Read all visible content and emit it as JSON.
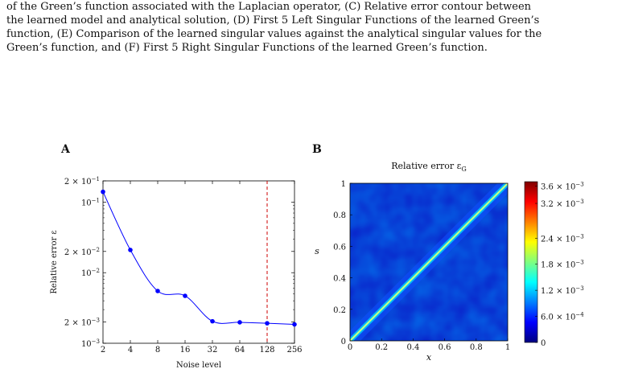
{
  "caption": {
    "lines": [
      "of the Green’s function associated with the Laplacian operator, (C) Relative error contour between",
      "the learned model and analytical solution, (D) First 5 Left Singular Functions of the learned Green’s",
      "function, (E) Comparison of the learned singular values against the analytical singular values for the",
      "Green’s function, and (F) First 5 Right Singular Functions of the learned Green’s function."
    ]
  },
  "panels": {
    "a_label": "A",
    "b_label": "B"
  },
  "chart_data": [
    {
      "type": "line",
      "panel": "A",
      "xlabel": "Noise level",
      "ylabel": "Relative error ε",
      "x_scale": "log2",
      "y_scale": "log10",
      "xlim": [
        2,
        256
      ],
      "ylim": [
        0.001,
        0.2
      ],
      "x_ticks": [
        2,
        4,
        8,
        16,
        32,
        64,
        128,
        256
      ],
      "x_tick_labels": [
        "2",
        "4",
        "8",
        "16",
        "32",
        "64",
        "128",
        "256"
      ],
      "y_ticks": [
        {
          "value": 0.2,
          "base": "2 × 10",
          "exp": "−1"
        },
        {
          "value": 0.1,
          "base": "10",
          "exp": "−1"
        },
        {
          "value": 0.02,
          "base": "2 × 10",
          "exp": "−2"
        },
        {
          "value": 0.01,
          "base": "10",
          "exp": "−2"
        },
        {
          "value": 0.002,
          "base": "2 × 10",
          "exp": "−3"
        },
        {
          "value": 0.001,
          "base": "10",
          "exp": "−3"
        }
      ],
      "series": [
        {
          "x": [
            2,
            4,
            8,
            16,
            32,
            64,
            128,
            256
          ],
          "y": [
            0.14,
            0.021,
            0.0055,
            0.0047,
            0.00205,
            0.00198,
            0.00192,
            0.00185
          ],
          "color": "#0000ff"
        }
      ],
      "vline": {
        "x": 128,
        "color": "#cc0000",
        "style": "dashed"
      },
      "grid": false
    },
    {
      "type": "heatmap",
      "panel": "B",
      "title": "Relative error ε",
      "title_sub": "G",
      "xlabel": "x",
      "ylabel": "s",
      "xlim": [
        0,
        1
      ],
      "ylim": [
        0,
        1
      ],
      "x_tick_labels": [
        "0",
        "0.2",
        "0.4",
        "0.6",
        "0.8",
        "1"
      ],
      "y_tick_labels": [
        "0",
        "0.2",
        "0.4",
        "0.6",
        "0.8",
        "1"
      ],
      "colormap": "jet",
      "colorbar_range": [
        0,
        0.0037
      ],
      "colorbar_ticks": [
        {
          "value": 0.0036,
          "base": "3.6 × 10",
          "exp": "−3"
        },
        {
          "value": 0.0032,
          "base": "3.2 × 10",
          "exp": "−3"
        },
        {
          "value": 0.0024,
          "base": "2.4 × 10",
          "exp": "−3"
        },
        {
          "value": 0.0018,
          "base": "1.8 × 10",
          "exp": "−3"
        },
        {
          "value": 0.0012,
          "base": "1.2 × 10",
          "exp": "−3"
        },
        {
          "value": 0.0006,
          "base": "6.0 × 10",
          "exp": "−4"
        },
        {
          "value": 0,
          "base": "0",
          "exp": ""
        }
      ],
      "feature": "high error concentrated along the diagonal x = s; low error elsewhere"
    }
  ]
}
